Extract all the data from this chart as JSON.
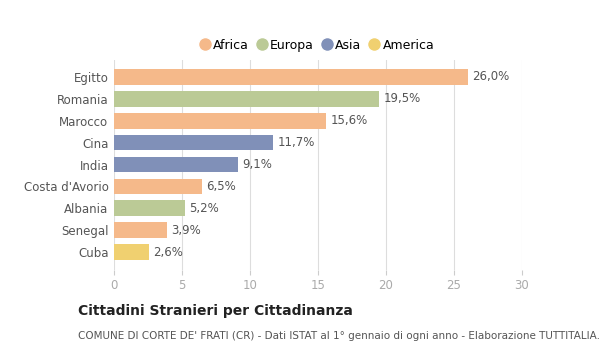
{
  "categories": [
    "Egitto",
    "Romania",
    "Marocco",
    "Cina",
    "India",
    "Costa d'Avorio",
    "Albania",
    "Senegal",
    "Cuba"
  ],
  "values": [
    26.0,
    19.5,
    15.6,
    11.7,
    9.1,
    6.5,
    5.2,
    3.9,
    2.6
  ],
  "labels": [
    "26,0%",
    "19,5%",
    "15,6%",
    "11,7%",
    "9,1%",
    "6,5%",
    "5,2%",
    "3,9%",
    "2,6%"
  ],
  "colors": [
    "#F5B98A",
    "#BBCA96",
    "#F5B98A",
    "#8090B8",
    "#8090B8",
    "#F5B98A",
    "#BBCA96",
    "#F5B98A",
    "#F0D070"
  ],
  "legend_labels": [
    "Africa",
    "Europa",
    "Asia",
    "America"
  ],
  "legend_colors": [
    "#F5B98A",
    "#BBCA96",
    "#8090B8",
    "#F0D070"
  ],
  "xlim": [
    0,
    30
  ],
  "xticks": [
    0,
    5,
    10,
    15,
    20,
    25,
    30
  ],
  "title": "Cittadini Stranieri per Cittadinanza",
  "subtitle": "COMUNE DI CORTE DE' FRATI (CR) - Dati ISTAT al 1° gennaio di ogni anno - Elaborazione TUTTITALIA.IT",
  "bg_color": "#ffffff",
  "bar_height": 0.72,
  "label_fontsize": 8.5,
  "title_fontsize": 10,
  "subtitle_fontsize": 7.5,
  "ytick_fontsize": 8.5,
  "xtick_fontsize": 8.5
}
